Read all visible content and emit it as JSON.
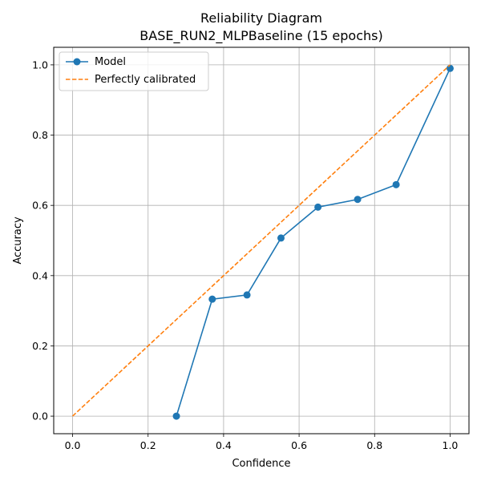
{
  "chart_data": {
    "type": "line",
    "title": "Reliability Diagram",
    "subtitle": "BASE_RUN2_MLPBaseline (15 epochs)",
    "xlabel": "Confidence",
    "ylabel": "Accuracy",
    "xlim": [
      -0.05,
      1.05
    ],
    "ylim": [
      -0.05,
      1.05
    ],
    "xticks": [
      "0.0",
      "0.2",
      "0.4",
      "0.6",
      "0.8",
      "1.0"
    ],
    "yticks": [
      "0.0",
      "0.2",
      "0.4",
      "0.6",
      "0.8",
      "1.0"
    ],
    "grid": true,
    "legend_position": "top-left",
    "series": [
      {
        "name": "Model",
        "style": "solid-with-markers",
        "color": "#1f77b4",
        "x": [
          0.275,
          0.37,
          0.462,
          0.552,
          0.65,
          0.755,
          0.857,
          1.0
        ],
        "y": [
          0.0,
          0.333,
          0.345,
          0.507,
          0.595,
          0.617,
          0.659,
          0.99
        ]
      },
      {
        "name": "Perfectly calibrated",
        "style": "dashed",
        "color": "#ff7f0e",
        "x": [
          0.0,
          1.0
        ],
        "y": [
          0.0,
          1.0
        ]
      }
    ]
  }
}
